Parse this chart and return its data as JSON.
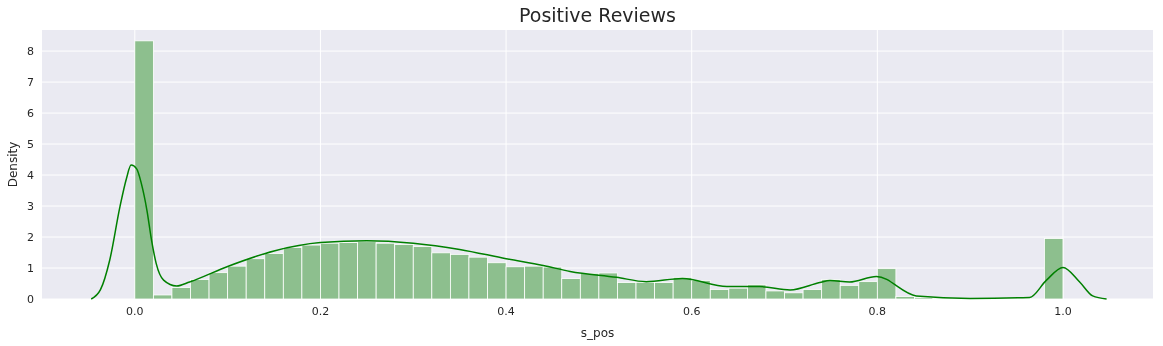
{
  "chart_data": {
    "type": "histogram",
    "title": "Positive Reviews",
    "xlabel": "s_pos",
    "ylabel": "Density",
    "xlim": [
      -0.1,
      1.097
    ],
    "xticks": [
      {
        "value": 0,
        "label": "0.0"
      },
      {
        "value": 0.2,
        "label": "0.2"
      },
      {
        "value": 0.4,
        "label": "0.4"
      },
      {
        "value": 0.6,
        "label": "0.6"
      },
      {
        "value": 0.8,
        "label": "0.8"
      },
      {
        "value": 1,
        "label": "1.0"
      }
    ],
    "ylim": [
      0,
      8.68
    ],
    "yticks": [
      0,
      1,
      2,
      3,
      4,
      5,
      6,
      7,
      8
    ],
    "grid": true,
    "series": [
      {
        "color": "#8dbf8e",
        "bins": [
          0,
          0.02,
          0.04,
          0.06,
          0.08,
          0.1,
          0.12,
          0.14,
          0.16,
          0.18,
          0.2,
          0.22,
          0.24,
          0.26,
          0.28,
          0.3,
          0.32,
          0.34,
          0.36,
          0.38,
          0.4,
          0.42,
          0.44,
          0.46,
          0.48,
          0.5,
          0.52,
          0.54,
          0.56,
          0.58,
          0.6,
          0.62,
          0.64,
          0.66,
          0.68,
          0.7,
          0.72,
          0.74,
          0.76,
          0.78,
          0.8,
          0.82,
          0.84,
          0.86,
          0.88,
          0.9,
          0.92,
          0.94,
          0.96,
          0.98,
          1
        ],
        "values": [
          8.33,
          0.13,
          0.37,
          0.63,
          0.85,
          1.06,
          1.3,
          1.47,
          1.66,
          1.74,
          1.8,
          1.82,
          1.85,
          1.8,
          1.76,
          1.69,
          1.49,
          1.44,
          1.35,
          1.17,
          1.04,
          1.06,
          1.03,
          0.66,
          0.83,
          0.84,
          0.53,
          0.54,
          0.53,
          0.7,
          0.6,
          0.31,
          0.35,
          0.46,
          0.26,
          0.2,
          0.31,
          0.63,
          0.44,
          0.56,
          0.98,
          0.08,
          0.05,
          0.03,
          0.02,
          0.02,
          0.01,
          0.01,
          0.01,
          1.95
        ]
      },
      {
        "type": "line",
        "color": "#008000",
        "x": [
          -0.047,
          -0.037,
          -0.027,
          -0.016,
          -0.009,
          -0.004,
          0.002,
          0.007,
          0.013,
          0.018,
          0.023,
          0.031,
          0.045,
          0.059,
          0.1,
          0.15,
          0.2,
          0.25,
          0.3,
          0.35,
          0.4,
          0.44,
          0.469,
          0.519,
          0.551,
          0.59,
          0.638,
          0.673,
          0.706,
          0.738,
          0.749,
          0.77,
          0.799,
          0.842,
          0.9,
          0.964,
          0.982,
          1.0,
          1.018,
          1.032,
          1.047
        ],
        "values": [
          0,
          0.3,
          1.26,
          2.98,
          3.89,
          4.32,
          4.2,
          3.73,
          2.87,
          1.9,
          1.15,
          0.61,
          0.42,
          0.55,
          1.05,
          1.55,
          1.82,
          1.88,
          1.8,
          1.6,
          1.3,
          1.08,
          0.89,
          0.7,
          0.56,
          0.66,
          0.4,
          0.4,
          0.29,
          0.53,
          0.6,
          0.55,
          0.73,
          0.1,
          0.02,
          0.05,
          0.6,
          1.02,
          0.55,
          0.1,
          0
        ]
      }
    ]
  }
}
